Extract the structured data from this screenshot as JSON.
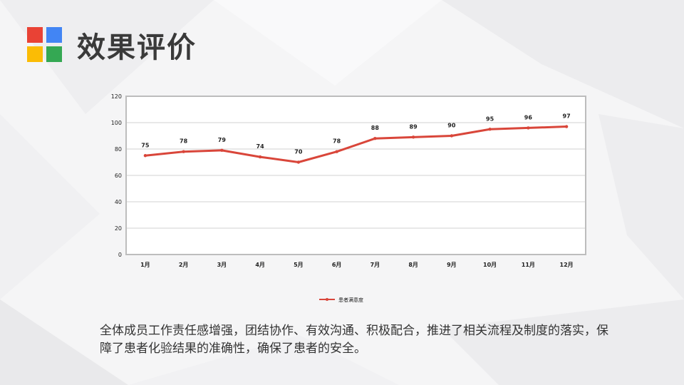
{
  "slide": {
    "title": "效果评价",
    "caption": "全体成员工作责任感增强，团结协作、有效沟通、积极配合，推进了相关流程及制度的落实，保障了患者化验结果的准确性，确保了患者的安全。"
  },
  "logo": {
    "colors": [
      "#e94235",
      "#4285f4",
      "#fbbc05",
      "#34a853"
    ]
  },
  "chart_data": {
    "type": "line",
    "categories": [
      "1月",
      "2月",
      "3月",
      "4月",
      "5月",
      "6月",
      "7月",
      "8月",
      "9月",
      "10月",
      "11月",
      "12月"
    ],
    "series": [
      {
        "name": "患者满意度",
        "values": [
          75,
          78,
          79,
          74,
          70,
          78,
          88,
          89,
          90,
          95,
          96,
          97
        ],
        "color": "#d9463a"
      }
    ],
    "ylim": [
      0,
      120
    ],
    "yticks": [
      0,
      20,
      40,
      60,
      80,
      100,
      120
    ],
    "grid": true,
    "data_labels": true,
    "legend": "bottom"
  }
}
